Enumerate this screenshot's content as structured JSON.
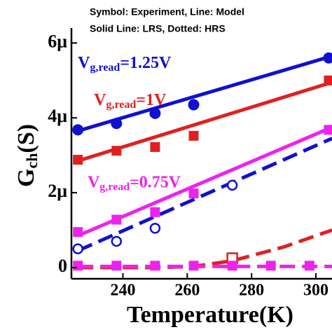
{
  "chart_data": {
    "type": "scatter",
    "header": [
      "Symbol: Experiment, Line: Model",
      "Solid Line: LRS, Dotted: HRS"
    ],
    "xlabel": "Temperature(K)",
    "ylabel": {
      "main": "G",
      "sub": "ch",
      "rest": "(S)"
    },
    "annotations": [
      {
        "main": "V",
        "sub": "g,read",
        "rest": "=1.25V",
        "color": "#1010d0",
        "x": 226,
        "y": 5.45e-06
      },
      {
        "main": "V",
        "sub": "g,read",
        "rest": "=1V",
        "color": "#e02020",
        "x": 231,
        "y": 4.45e-06
      },
      {
        "main": "V",
        "sub": "g,read",
        "rest": "=0.75V",
        "color": "#ee22ee",
        "x": 229,
        "y": 2.25e-06
      }
    ],
    "xlim": [
      224,
      305
    ],
    "ylim": [
      -3e-07,
      6.4e-06
    ],
    "xticks": [
      240,
      260,
      280,
      300
    ],
    "yticks": [
      {
        "value": 0,
        "label": "0"
      },
      {
        "value": 2e-06,
        "label": "2μ"
      },
      {
        "value": 4e-06,
        "label": "4μ"
      },
      {
        "value": 6e-06,
        "label": "6μ"
      }
    ],
    "series": [
      {
        "color": "#1010d0",
        "dash": false,
        "x": [
          226,
          305
        ],
        "values": [
          3.65e-06,
          5.65e-06
        ]
      },
      {
        "color": "#e02020",
        "dash": false,
        "x": [
          226,
          305
        ],
        "values": [
          2.85e-06,
          4.95e-06
        ]
      },
      {
        "color": "#ee22ee",
        "dash": false,
        "x": [
          226,
          305
        ],
        "values": [
          8.5e-07,
          3.75e-06
        ]
      },
      {
        "color": "#1010d0",
        "dash": true,
        "x": [
          226,
          305
        ],
        "values": [
          4.5e-07,
          3.45e-06
        ]
      },
      {
        "color": "#e02020",
        "dash": true,
        "x": [
          226,
          250,
          262,
          274,
          290,
          305
        ],
        "values": [
          0,
          0,
          3e-08,
          1.8e-07,
          5.5e-07,
          1e-06
        ]
      },
      {
        "color": "#ee22ee",
        "dash": true,
        "x": [
          226,
          305
        ],
        "values": [
          3e-08,
          3e-08
        ]
      },
      {
        "color": "#1010d0",
        "marker": "circle",
        "filled": true,
        "x": [
          226,
          238,
          250,
          262,
          304
        ],
        "values": [
          3.68e-06,
          3.85e-06,
          4.12e-06,
          4.35e-06,
          5.6e-06
        ]
      },
      {
        "color": "#e02020",
        "marker": "square",
        "filled": true,
        "x": [
          226,
          238,
          250,
          262,
          304
        ],
        "values": [
          2.88e-06,
          3.12e-06,
          3.22e-06,
          3.52e-06,
          5e-06
        ]
      },
      {
        "color": "#ee22ee",
        "marker": "square",
        "filled": true,
        "x": [
          226,
          238,
          250,
          262,
          304
        ],
        "values": [
          9.5e-07,
          1.28e-06,
          1.48e-06,
          1.98e-06,
          3.68e-06
        ]
      },
      {
        "color": "#1010d0",
        "marker": "circle",
        "filled": false,
        "x": [
          226,
          238,
          250,
          274
        ],
        "values": [
          5e-07,
          7e-07,
          1.05e-06,
          2.2e-06
        ]
      },
      {
        "color": "#e02020",
        "marker": "square",
        "filled": false,
        "x": [
          274
        ],
        "values": [
          2.5e-07
        ]
      },
      {
        "color": "#ee22ee",
        "marker": "square",
        "filled": true,
        "x": [
          226,
          238,
          250,
          262,
          274,
          286,
          298
        ],
        "values": [
          5e-08,
          5e-08,
          5e-08,
          5e-08,
          5e-08,
          5e-08,
          5e-08
        ]
      }
    ]
  }
}
